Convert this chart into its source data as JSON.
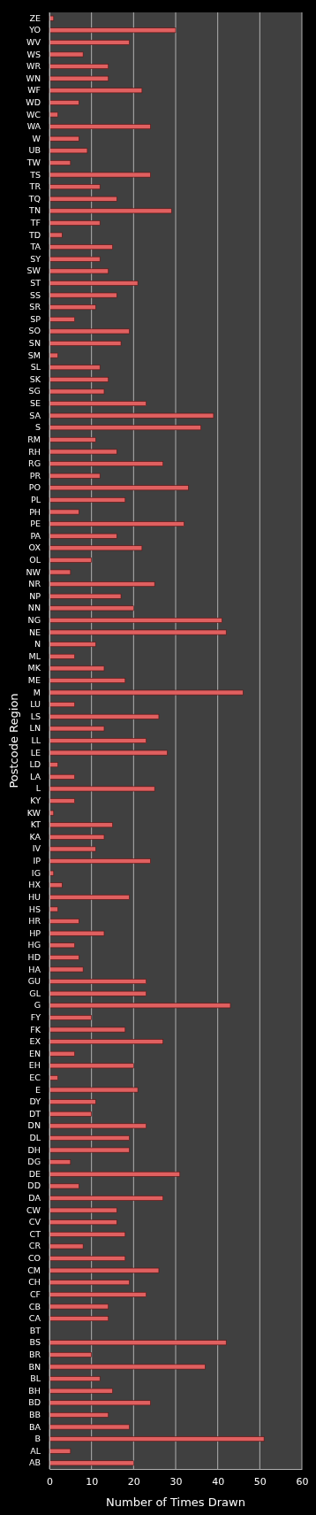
{
  "chart_data": {
    "type": "bar",
    "orientation": "horizontal",
    "xlabel": "Number of Times Drawn",
    "ylabel": "Postcode Region",
    "categories": [
      "ZE",
      "YO",
      "WV",
      "WS",
      "WR",
      "WN",
      "WF",
      "WD",
      "WC",
      "WA",
      "W",
      "UB",
      "TW",
      "TS",
      "TR",
      "TQ",
      "TN",
      "TF",
      "TD",
      "TA",
      "SY",
      "SW",
      "ST",
      "SS",
      "SR",
      "SP",
      "SO",
      "SN",
      "SM",
      "SL",
      "SK",
      "SG",
      "SE",
      "SA",
      "S",
      "RM",
      "RH",
      "RG",
      "PR",
      "PO",
      "PL",
      "PH",
      "PE",
      "PA",
      "OX",
      "OL",
      "NW",
      "NR",
      "NP",
      "NN",
      "NG",
      "NE",
      "N",
      "ML",
      "MK",
      "ME",
      "M",
      "LU",
      "LS",
      "LN",
      "LL",
      "LE",
      "LD",
      "LA",
      "L",
      "KY",
      "KW",
      "KT",
      "KA",
      "IV",
      "IP",
      "IG",
      "HX",
      "HU",
      "HS",
      "HR",
      "HP",
      "HG",
      "HD",
      "HA",
      "GU",
      "GL",
      "G",
      "FY",
      "FK",
      "EX",
      "EN",
      "EH",
      "EC",
      "E",
      "DY",
      "DT",
      "DN",
      "DL",
      "DH",
      "DG",
      "DE",
      "DD",
      "DA",
      "CW",
      "CV",
      "CT",
      "CR",
      "CO",
      "CM",
      "CH",
      "CF",
      "CB",
      "CA",
      "BT",
      "BS",
      "BR",
      "BN",
      "BL",
      "BH",
      "BD",
      "BB",
      "BA",
      "B",
      "AL",
      "AB"
    ],
    "values": [
      1,
      30,
      19,
      8,
      14,
      14,
      22,
      7,
      2,
      24,
      7,
      9,
      5,
      24,
      12,
      16,
      29,
      12,
      3,
      15,
      12,
      14,
      21,
      16,
      11,
      6,
      19,
      17,
      2,
      12,
      14,
      13,
      23,
      39,
      36,
      11,
      16,
      27,
      12,
      33,
      18,
      7,
      32,
      16,
      22,
      10,
      5,
      25,
      17,
      20,
      41,
      42,
      11,
      6,
      13,
      18,
      46,
      6,
      26,
      13,
      23,
      28,
      2,
      6,
      25,
      6,
      1,
      15,
      13,
      11,
      24,
      1,
      3,
      19,
      2,
      7,
      13,
      6,
      7,
      8,
      23,
      23,
      43,
      10,
      18,
      27,
      6,
      20,
      2,
      21,
      11,
      10,
      23,
      19,
      19,
      5,
      31,
      7,
      27,
      16,
      16,
      18,
      8,
      18,
      26,
      19,
      23,
      14,
      14,
      0,
      42,
      10,
      37,
      12,
      15,
      24,
      14,
      19,
      51,
      5,
      20
    ],
    "color": "#e06060",
    "xlim": [
      0,
      60
    ],
    "xticks": [
      0,
      10,
      20,
      30,
      40,
      50,
      60
    ],
    "grid": "x"
  }
}
